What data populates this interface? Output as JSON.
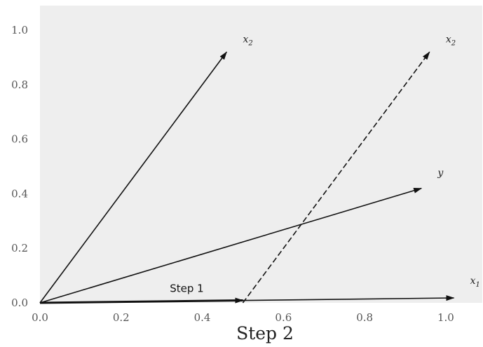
{
  "chart_data": {
    "type": "vector",
    "title": "",
    "xlabel": "Step 2",
    "ylabel": "",
    "xlim": [
      0.0,
      1.09
    ],
    "ylim": [
      0.0,
      1.09
    ],
    "grid": false,
    "background": "#eeeeee",
    "xticks": [
      "0.0",
      "0.2",
      "0.4",
      "0.6",
      "0.8",
      "1.0"
    ],
    "xtick_values": [
      0.0,
      0.2,
      0.4,
      0.6,
      0.8,
      1.0
    ],
    "yticks": [
      "0.0",
      "0.2",
      "0.4",
      "0.6",
      "0.8",
      "1.0"
    ],
    "ytick_values": [
      0.0,
      0.2,
      0.4,
      0.6,
      0.8,
      1.0
    ],
    "vectors": [
      {
        "name": "x2",
        "label_base": "x",
        "label_sub": "2",
        "x0": 0.0,
        "y0": 0.0,
        "x1": 0.46,
        "y1": 0.92,
        "style": "solid",
        "label_x": 0.5,
        "label_y": 0.955
      },
      {
        "name": "x2-shifted",
        "label_base": "x",
        "label_sub": "2",
        "x0": 0.5,
        "y0": 0.0,
        "x1": 0.96,
        "y1": 0.92,
        "style": "dashed",
        "label_x": 1.0,
        "label_y": 0.955
      },
      {
        "name": "y",
        "label_base": "y",
        "label_sub": "",
        "x0": 0.0,
        "y0": 0.0,
        "x1": 0.94,
        "y1": 0.42,
        "style": "solid",
        "label_x": 0.98,
        "label_y": 0.465
      },
      {
        "name": "x1",
        "label_base": "x",
        "label_sub": "1",
        "x0": 0.0,
        "y0": 0.0,
        "x1": 1.02,
        "y1": 0.018,
        "style": "solid",
        "label_x": 1.06,
        "label_y": 0.07
      },
      {
        "name": "step1",
        "label_base": "",
        "label_sub": "",
        "x0": 0.0,
        "y0": 0.0,
        "x1": 0.5,
        "y1": 0.009,
        "style": "bold",
        "label_x": 0,
        "label_y": 0
      }
    ],
    "annotations": [
      {
        "text": "Step 1",
        "x": 0.32,
        "y": 0.04
      }
    ]
  }
}
